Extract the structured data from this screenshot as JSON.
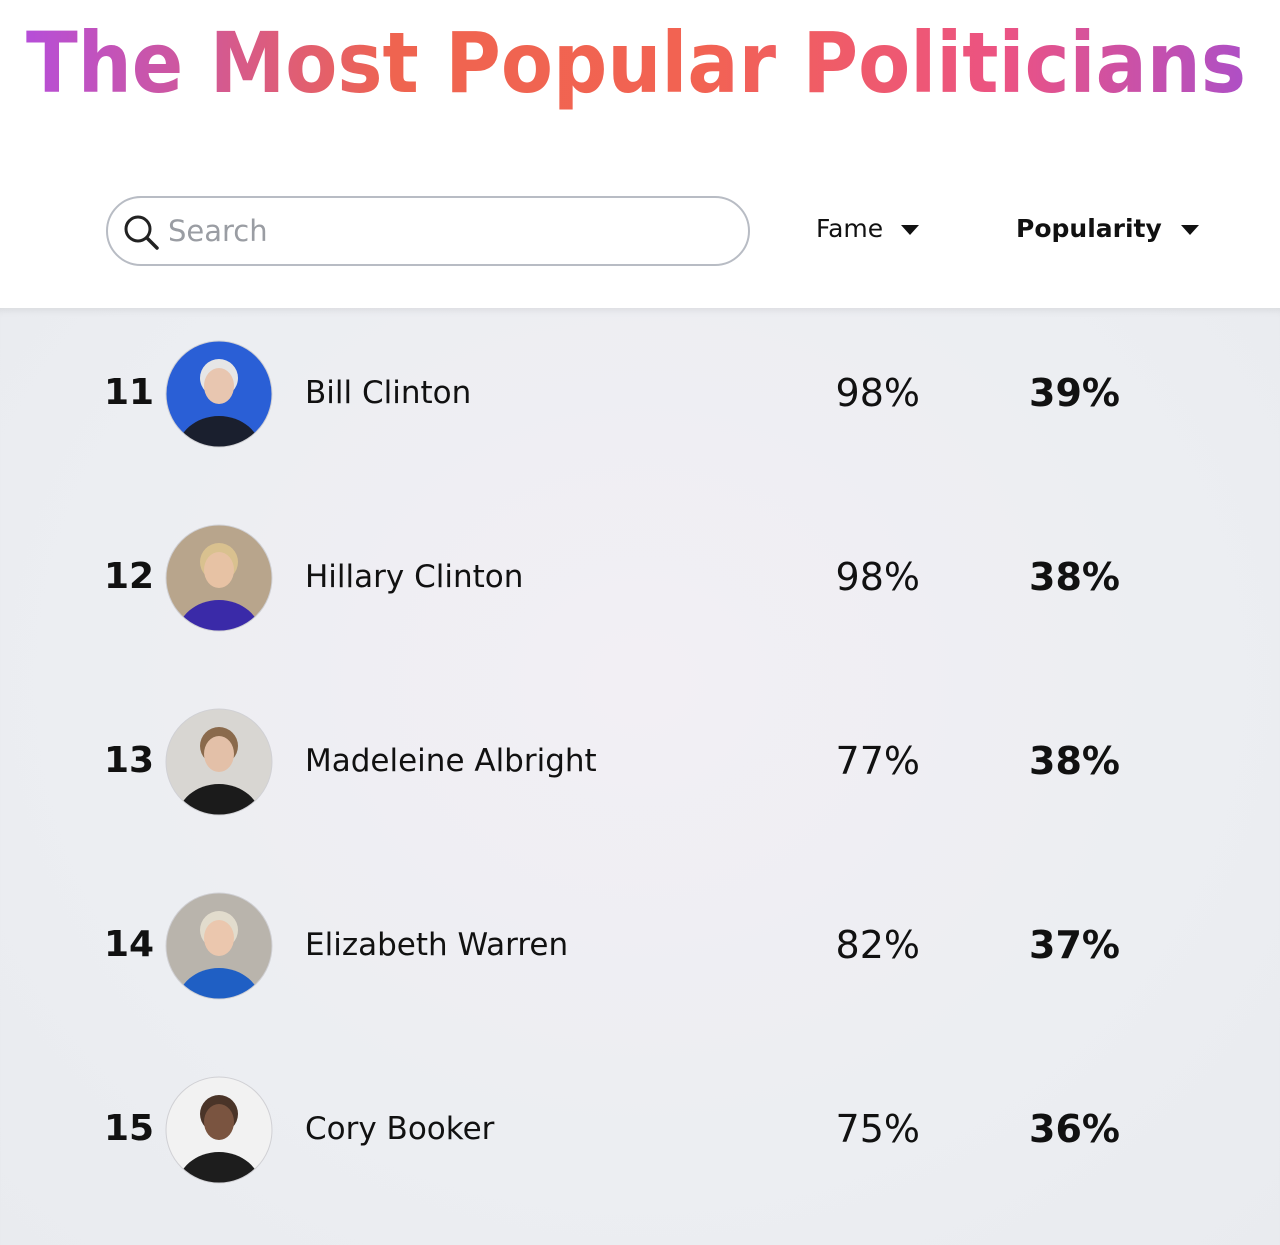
{
  "header": {
    "title": "The Most Popular Politicians"
  },
  "controls": {
    "search_placeholder": "Search",
    "sort_fame": "Fame",
    "sort_popularity": "Popularity"
  },
  "table": {
    "rows": [
      {
        "rank": "11",
        "name": "Bill Clinton",
        "fame": "98%",
        "popularity": "39%"
      },
      {
        "rank": "12",
        "name": "Hillary Clinton",
        "fame": "98%",
        "popularity": "38%"
      },
      {
        "rank": "13",
        "name": "Madeleine Albright",
        "fame": "77%",
        "popularity": "38%"
      },
      {
        "rank": "14",
        "name": "Elizabeth Warren",
        "fame": "82%",
        "popularity": "37%"
      },
      {
        "rank": "15",
        "name": "Cory Booker",
        "fame": "75%",
        "popularity": "36%"
      }
    ]
  }
}
